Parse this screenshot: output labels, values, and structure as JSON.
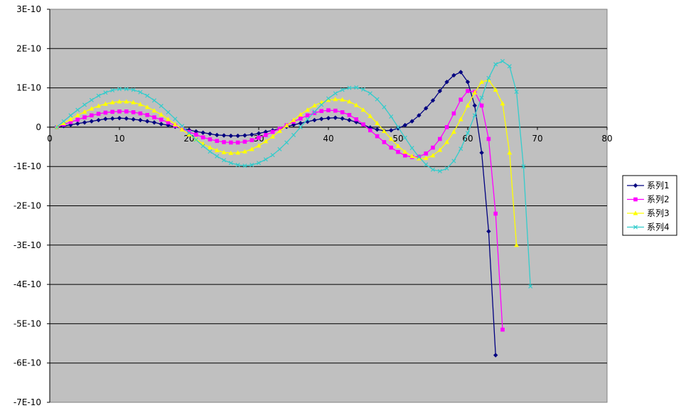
{
  "chart_data": {
    "type": "line",
    "xlim": [
      0,
      80
    ],
    "ylim": [
      -7e-10,
      3e-10
    ],
    "x_ticks": [
      0,
      10,
      20,
      30,
      40,
      50,
      60,
      70,
      80
    ],
    "x_tick_labels": [
      "0",
      "10",
      "20",
      "30",
      "40",
      "50",
      "60",
      "70",
      "80"
    ],
    "y_ticks": [
      3e-10,
      2e-10,
      1e-10,
      0,
      -1e-10,
      -2e-10,
      -3e-10,
      -4e-10,
      -5e-10,
      -6e-10,
      -7e-10
    ],
    "y_tick_labels": [
      "3E-10",
      "2E-10",
      "1E-10",
      "0",
      "-1E-10",
      "-2E-10",
      "-3E-10",
      "-4E-10",
      "-5E-10",
      "-6E-10",
      "-7E-10"
    ],
    "grid": true,
    "legend_position": "right",
    "plot_background": "#c0c0c0",
    "series": [
      {
        "name": "系列1",
        "color": "#000080",
        "marker": "diamond",
        "points": [
          [
            1,
            0.0
          ],
          [
            2,
            3e-12
          ],
          [
            3,
            6e-12
          ],
          [
            4,
            9e-12
          ],
          [
            5,
            1.2e-11
          ],
          [
            6,
            1.5e-11
          ],
          [
            7,
            1.8e-11
          ],
          [
            8,
            2.1e-11
          ],
          [
            9,
            2.2e-11
          ],
          [
            10,
            2.3e-11
          ],
          [
            11,
            2.2e-11
          ],
          [
            12,
            2e-11
          ],
          [
            13,
            1.8e-11
          ],
          [
            14,
            1.5e-11
          ],
          [
            15,
            1.2e-11
          ],
          [
            16,
            8e-12
          ],
          [
            17,
            5e-12
          ],
          [
            18,
            1e-12
          ],
          [
            19,
            -3e-12
          ],
          [
            20,
            -7e-12
          ],
          [
            21,
            -1.1e-11
          ],
          [
            22,
            -1.4e-11
          ],
          [
            23,
            -1.7e-11
          ],
          [
            24,
            -2e-11
          ],
          [
            25,
            -2.1e-11
          ],
          [
            26,
            -2.2e-11
          ],
          [
            27,
            -2.2e-11
          ],
          [
            28,
            -2.1e-11
          ],
          [
            29,
            -1.9e-11
          ],
          [
            30,
            -1.6e-11
          ],
          [
            31,
            -1.2e-11
          ],
          [
            32,
            -8e-12
          ],
          [
            33,
            -4e-12
          ],
          [
            34,
            1e-12
          ],
          [
            35,
            6e-12
          ],
          [
            36,
            1e-11
          ],
          [
            37,
            1.4e-11
          ],
          [
            38,
            1.8e-11
          ],
          [
            39,
            2.1e-11
          ],
          [
            40,
            2.3e-11
          ],
          [
            41,
            2.4e-11
          ],
          [
            42,
            2.2e-11
          ],
          [
            43,
            1.8e-11
          ],
          [
            44,
            1.3e-11
          ],
          [
            45,
            6e-12
          ],
          [
            46,
            -1e-12
          ],
          [
            47,
            -6e-12
          ],
          [
            48,
            -9e-12
          ],
          [
            49,
            -8e-12
          ],
          [
            50,
            -3e-12
          ],
          [
            51,
            5e-12
          ],
          [
            52,
            1.5e-11
          ],
          [
            53,
            3e-11
          ],
          [
            54,
            4.8e-11
          ],
          [
            55,
            6.8e-11
          ],
          [
            56,
            9.2e-11
          ],
          [
            57,
            1.15e-10
          ],
          [
            58,
            1.32e-10
          ],
          [
            59,
            1.4e-10
          ],
          [
            60,
            1.15e-10
          ],
          [
            61,
            5.5e-11
          ],
          [
            62,
            -6.5e-11
          ],
          [
            63,
            -2.65e-10
          ],
          [
            64,
            -5.8e-10
          ]
        ]
      },
      {
        "name": "系列2",
        "color": "#ff00ff",
        "marker": "square",
        "points": [
          [
            1,
            0.0
          ],
          [
            2,
            7e-12
          ],
          [
            3,
            1.3e-11
          ],
          [
            4,
            1.9e-11
          ],
          [
            5,
            2.5e-11
          ],
          [
            6,
            3e-11
          ],
          [
            7,
            3.4e-11
          ],
          [
            8,
            3.7e-11
          ],
          [
            9,
            3.9e-11
          ],
          [
            10,
            4e-11
          ],
          [
            11,
            4e-11
          ],
          [
            12,
            3.8e-11
          ],
          [
            13,
            3.5e-11
          ],
          [
            14,
            3.1e-11
          ],
          [
            15,
            2.5e-11
          ],
          [
            16,
            1.9e-11
          ],
          [
            17,
            1.2e-11
          ],
          [
            18,
            4e-12
          ],
          [
            19,
            -4e-12
          ],
          [
            20,
            -1.2e-11
          ],
          [
            21,
            -1.9e-11
          ],
          [
            22,
            -2.6e-11
          ],
          [
            23,
            -3.1e-11
          ],
          [
            24,
            -3.5e-11
          ],
          [
            25,
            -3.8e-11
          ],
          [
            26,
            -3.9e-11
          ],
          [
            27,
            -3.9e-11
          ],
          [
            28,
            -3.7e-11
          ],
          [
            29,
            -3.3e-11
          ],
          [
            30,
            -2.7e-11
          ],
          [
            31,
            -2e-11
          ],
          [
            32,
            -1.2e-11
          ],
          [
            33,
            -4e-12
          ],
          [
            34,
            5e-12
          ],
          [
            35,
            1.4e-11
          ],
          [
            36,
            2.2e-11
          ],
          [
            37,
            3e-11
          ],
          [
            38,
            3.6e-11
          ],
          [
            39,
            4.1e-11
          ],
          [
            40,
            4.3e-11
          ],
          [
            41,
            4.2e-11
          ],
          [
            42,
            3.8e-11
          ],
          [
            43,
            3.1e-11
          ],
          [
            44,
            2e-11
          ],
          [
            45,
            7e-12
          ],
          [
            46,
            -8e-12
          ],
          [
            47,
            -2.3e-11
          ],
          [
            48,
            -3.8e-11
          ],
          [
            49,
            -5.2e-11
          ],
          [
            50,
            -6.3e-11
          ],
          [
            51,
            -7.2e-11
          ],
          [
            52,
            -7.6e-11
          ],
          [
            53,
            -7.5e-11
          ],
          [
            54,
            -6.7e-11
          ],
          [
            55,
            -5.2e-11
          ],
          [
            56,
            -3e-11
          ],
          [
            57,
            0.0
          ],
          [
            58,
            3.5e-11
          ],
          [
            59,
            7e-11
          ],
          [
            60,
            9.2e-11
          ],
          [
            61,
            9e-11
          ],
          [
            62,
            5.5e-11
          ],
          [
            63,
            -3e-11
          ],
          [
            64,
            -2.2e-10
          ],
          [
            65,
            -5.15e-10
          ]
        ]
      },
      {
        "name": "系列3",
        "color": "#ffff00",
        "marker": "triangle",
        "points": [
          [
            1,
            0.0
          ],
          [
            2,
            1e-11
          ],
          [
            3,
            2e-11
          ],
          [
            4,
            3e-11
          ],
          [
            5,
            3.9e-11
          ],
          [
            6,
            4.7e-11
          ],
          [
            7,
            5.4e-11
          ],
          [
            8,
            5.9e-11
          ],
          [
            9,
            6.3e-11
          ],
          [
            10,
            6.5e-11
          ],
          [
            11,
            6.5e-11
          ],
          [
            12,
            6.3e-11
          ],
          [
            13,
            5.8e-11
          ],
          [
            14,
            5.1e-11
          ],
          [
            15,
            4.2e-11
          ],
          [
            16,
            3.2e-11
          ],
          [
            17,
            2e-11
          ],
          [
            18,
            7e-12
          ],
          [
            19,
            -6e-12
          ],
          [
            20,
            -1.9e-11
          ],
          [
            21,
            -3.1e-11
          ],
          [
            22,
            -4.2e-11
          ],
          [
            23,
            -5.2e-11
          ],
          [
            24,
            -5.9e-11
          ],
          [
            25,
            -6.4e-11
          ],
          [
            26,
            -6.6e-11
          ],
          [
            27,
            -6.5e-11
          ],
          [
            28,
            -6.2e-11
          ],
          [
            29,
            -5.6e-11
          ],
          [
            30,
            -4.7e-11
          ],
          [
            31,
            -3.6e-11
          ],
          [
            32,
            -2.4e-11
          ],
          [
            33,
            -1e-11
          ],
          [
            34,
            4e-12
          ],
          [
            35,
            1.8e-11
          ],
          [
            36,
            3.2e-11
          ],
          [
            37,
            4.4e-11
          ],
          [
            38,
            5.5e-11
          ],
          [
            39,
            6.3e-11
          ],
          [
            40,
            6.9e-11
          ],
          [
            41,
            7.1e-11
          ],
          [
            42,
            7e-11
          ],
          [
            43,
            6.5e-11
          ],
          [
            44,
            5.6e-11
          ],
          [
            45,
            4.4e-11
          ],
          [
            46,
            2.8e-11
          ],
          [
            47,
            1e-11
          ],
          [
            48,
            -1e-11
          ],
          [
            49,
            -3e-11
          ],
          [
            50,
            -4.8e-11
          ],
          [
            51,
            -6.3e-11
          ],
          [
            52,
            -7.4e-11
          ],
          [
            53,
            -8e-11
          ],
          [
            54,
            -7.9e-11
          ],
          [
            55,
            -7.2e-11
          ],
          [
            56,
            -5.8e-11
          ],
          [
            57,
            -3.8e-11
          ],
          [
            58,
            -1.2e-11
          ],
          [
            59,
            2e-11
          ],
          [
            60,
            5.5e-11
          ],
          [
            61,
            8.8e-11
          ],
          [
            62,
            1.15e-10
          ],
          [
            63,
            1.2e-10
          ],
          [
            64,
            9.5e-11
          ],
          [
            65,
            6e-11
          ],
          [
            66,
            -6.5e-11
          ],
          [
            67,
            -3e-10
          ]
        ]
      },
      {
        "name": "系列4",
        "color": "#33cccc",
        "marker": "x",
        "points": [
          [
            1,
            0.0
          ],
          [
            2,
            1.5e-11
          ],
          [
            3,
            3e-11
          ],
          [
            4,
            4.4e-11
          ],
          [
            5,
            5.7e-11
          ],
          [
            6,
            6.9e-11
          ],
          [
            7,
            8e-11
          ],
          [
            8,
            8.8e-11
          ],
          [
            9,
            9.4e-11
          ],
          [
            10,
            9.7e-11
          ],
          [
            11,
            9.7e-11
          ],
          [
            12,
            9.5e-11
          ],
          [
            13,
            8.9e-11
          ],
          [
            14,
            8e-11
          ],
          [
            15,
            6.8e-11
          ],
          [
            16,
            5.4e-11
          ],
          [
            17,
            3.8e-11
          ],
          [
            18,
            2.1e-11
          ],
          [
            19,
            3e-12
          ],
          [
            20,
            -1.5e-11
          ],
          [
            21,
            -3.2e-11
          ],
          [
            22,
            -4.8e-11
          ],
          [
            23,
            -6.2e-11
          ],
          [
            24,
            -7.4e-11
          ],
          [
            25,
            -8.4e-11
          ],
          [
            26,
            -9.1e-11
          ],
          [
            27,
            -9.6e-11
          ],
          [
            28,
            -9.8e-11
          ],
          [
            29,
            -9.6e-11
          ],
          [
            30,
            -9.1e-11
          ],
          [
            31,
            -8.2e-11
          ],
          [
            32,
            -7.1e-11
          ],
          [
            33,
            -5.6e-11
          ],
          [
            34,
            -3.9e-11
          ],
          [
            35,
            -2e-11
          ],
          [
            36,
            0.0
          ],
          [
            37,
            2e-11
          ],
          [
            38,
            3.9e-11
          ],
          [
            39,
            5.7e-11
          ],
          [
            40,
            7.3e-11
          ],
          [
            41,
            8.6e-11
          ],
          [
            42,
            9.5e-11
          ],
          [
            43,
            1e-10
          ],
          [
            44,
            1.01e-10
          ],
          [
            45,
            9.6e-11
          ],
          [
            46,
            8.6e-11
          ],
          [
            47,
            7.1e-11
          ],
          [
            48,
            5.1e-11
          ],
          [
            49,
            2.7e-11
          ],
          [
            50,
            0.0
          ],
          [
            51,
            -2.7e-11
          ],
          [
            52,
            -5.3e-11
          ],
          [
            53,
            -7.6e-11
          ],
          [
            54,
            -9.5e-11
          ],
          [
            55,
            -1.08e-10
          ],
          [
            56,
            -1.12e-10
          ],
          [
            57,
            -1.05e-10
          ],
          [
            58,
            -8.6e-11
          ],
          [
            59,
            -5.5e-11
          ],
          [
            60,
            -1.5e-11
          ],
          [
            61,
            3e-11
          ],
          [
            62,
            7.5e-11
          ],
          [
            63,
            1.25e-10
          ],
          [
            64,
            1.6e-10
          ],
          [
            65,
            1.68e-10
          ],
          [
            66,
            1.55e-10
          ],
          [
            67,
            9e-11
          ],
          [
            68,
            -1e-10
          ],
          [
            69,
            -4.05e-10
          ]
        ]
      }
    ]
  }
}
